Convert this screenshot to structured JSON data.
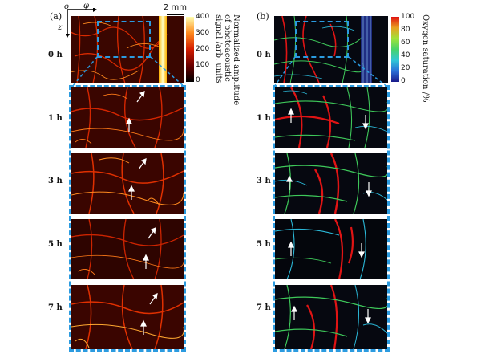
{
  "panels": {
    "a": {
      "label": "(a)",
      "axis_o": "o",
      "axis_phi": "φ",
      "axis_z": "z",
      "scale_bar": "2 mm",
      "colorbar": {
        "ticks": [
          "400",
          "300",
          "200",
          "100",
          "0"
        ],
        "title": "Normalized amplitude of photoacoustic signal /arb. units",
        "title_lines": [
          "Normalized amplitude",
          "of photoacoustic",
          "signal /arb. units"
        ],
        "colors": [
          "#000000",
          "#6a0000",
          "#d41c00",
          "#ff8a1e",
          "#ffffb0"
        ]
      }
    },
    "b": {
      "label": "(b)",
      "colorbar": {
        "ticks": [
          "100",
          "80",
          "60",
          "40",
          "20",
          "0"
        ],
        "title": "Oxygen saturation /%",
        "colors": [
          "#1a1a8a",
          "#2a6fd8",
          "#31c7d6",
          "#47d36a",
          "#9fe23a",
          "#e8a020",
          "#e01010"
        ]
      }
    }
  },
  "times": [
    "0 h",
    "1 h",
    "3 h",
    "5 h",
    "7 h"
  ]
}
